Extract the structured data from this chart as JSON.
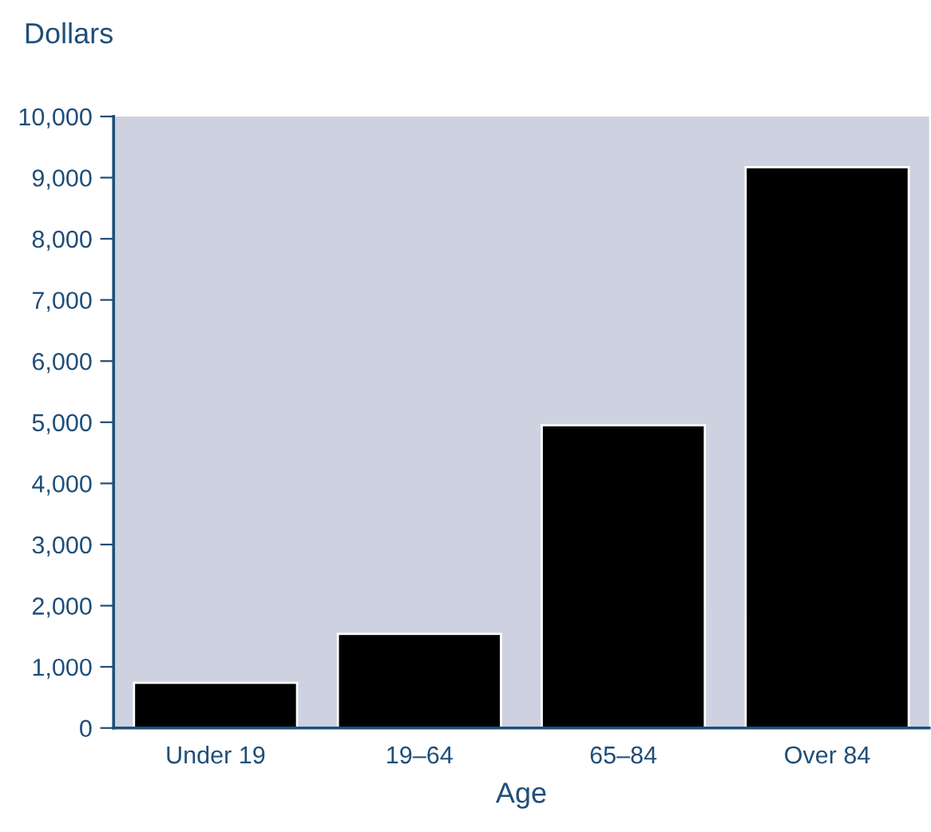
{
  "chart_data": {
    "type": "bar",
    "xlabel": "Age",
    "ylabel": "Dollars",
    "categories": [
      "Under 19",
      "19–64",
      "65–84",
      "Over 84"
    ],
    "values": [
      740,
      1540,
      4950,
      9170
    ],
    "color": "#000000",
    "ylim": [
      0,
      10000
    ],
    "yticks": [
      0,
      {
        "value": 1000,
        "label": "1,000"
      },
      {
        "value": 2000,
        "label": "2,000"
      },
      {
        "value": 3000,
        "label": "3,000"
      },
      {
        "value": 4000,
        "label": "4,000"
      },
      {
        "value": 5000,
        "label": "5,000"
      },
      {
        "value": 6000,
        "label": "6,000"
      },
      {
        "value": 7000,
        "label": "7,000"
      },
      {
        "value": 8000,
        "label": "8,000"
      },
      {
        "value": 9000,
        "label": "9,000"
      },
      {
        "value": 10000,
        "label": "10,000"
      }
    ],
    "grid": false,
    "legend": false
  }
}
